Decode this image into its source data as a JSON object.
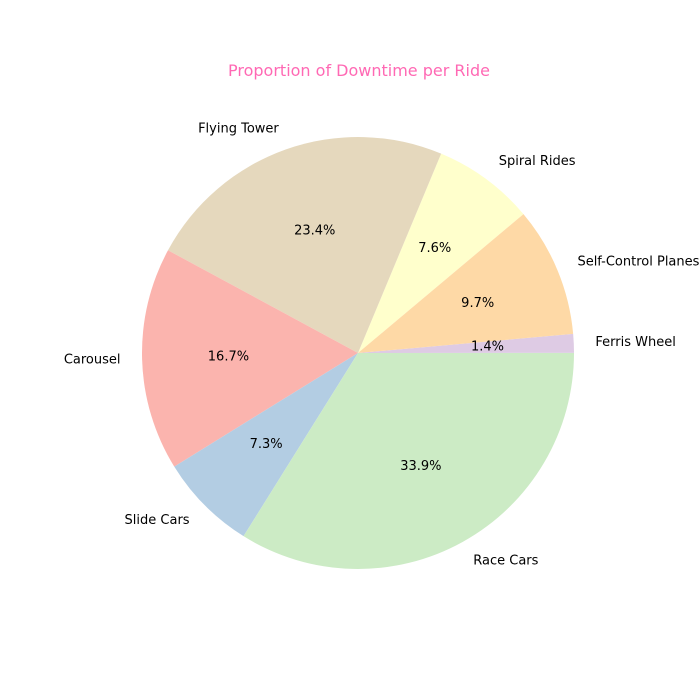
{
  "chart_data": {
    "type": "pie",
    "title": "Proportion of Downtime per Ride",
    "title_color": "#ff69b4",
    "start_angle_deg": 40,
    "direction": "counterclockwise",
    "slices": [
      {
        "label": "Spiral Rides",
        "value": 7.6,
        "pct_label": "7.6%",
        "color": "#ffffcc"
      },
      {
        "label": "Flying Tower",
        "value": 23.4,
        "pct_label": "23.4%",
        "color": "#e5d8bd"
      },
      {
        "label": "Carousel",
        "value": 16.7,
        "pct_label": "16.7%",
        "color": "#fbb4ae"
      },
      {
        "label": "Slide Cars",
        "value": 7.3,
        "pct_label": "7.3%",
        "color": "#b3cde3"
      },
      {
        "label": "Race Cars",
        "value": 33.9,
        "pct_label": "33.9%",
        "color": "#ccebc5"
      },
      {
        "label": "Ferris Wheel",
        "value": 1.4,
        "pct_label": "1.4%",
        "color": "#decbe4"
      },
      {
        "label": "Self-Control Planes",
        "value": 9.7,
        "pct_label": "9.7%",
        "color": "#fed9a6"
      }
    ]
  }
}
